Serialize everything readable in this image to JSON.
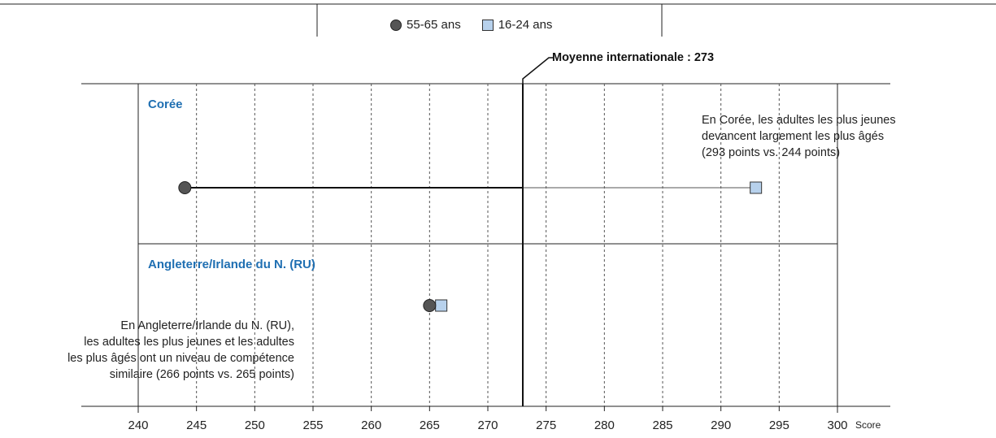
{
  "legend": {
    "series_a": "55-65 ans",
    "series_b": "16-24 ans"
  },
  "average": {
    "label": "Moyenne internationale : 273",
    "value": 273
  },
  "axis": {
    "unit_label": "Score"
  },
  "panels": [
    {
      "title": "Corée",
      "annotation": [
        "En Corée, les adultes les plus jeunes",
        "devancent largement les plus âgés",
        "(293 points vs. 244 points)"
      ]
    },
    {
      "title": "Angleterre/Irlande du N. (RU)",
      "annotation": [
        "En Angleterre/Irlande du N. (RU),",
        "les adultes les plus jeunes et les adultes",
        "les plus âgés ont un niveau de compétence",
        "similaire (266 points vs. 265 points)"
      ]
    }
  ],
  "colors": {
    "old_marker": "#555555",
    "young_marker": "#b7d1ec",
    "panel_title": "#1f6fb2"
  },
  "chart_data": {
    "type": "scatter",
    "xlim": [
      240,
      300
    ],
    "ticks": [
      240,
      245,
      250,
      255,
      260,
      265,
      270,
      275,
      280,
      285,
      290,
      295,
      300
    ],
    "grid": true,
    "series": [
      {
        "name": "55-65 ans",
        "marker": "circle",
        "values": [
          244,
          265
        ]
      },
      {
        "name": "16-24 ans",
        "marker": "square",
        "values": [
          293,
          266
        ]
      }
    ],
    "categories": [
      "Corée",
      "Angleterre/Irlande du N. (RU)"
    ],
    "reference_line": {
      "label": "Moyenne internationale : 273",
      "x": 273
    }
  }
}
